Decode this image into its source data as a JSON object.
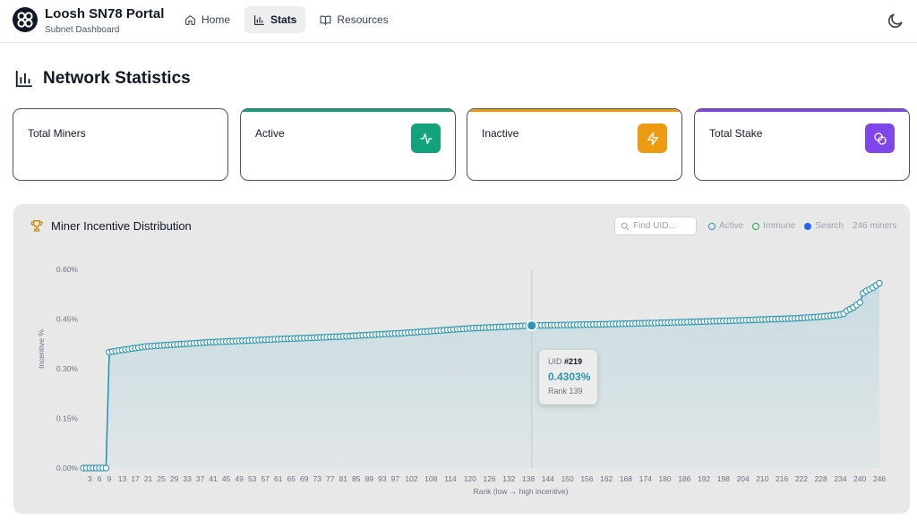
{
  "app": {
    "title": "Loosh SN78 Portal",
    "subtitle": "Subnet Dashboard"
  },
  "nav": {
    "items": [
      {
        "label": "Home",
        "icon": "home-icon",
        "active": false
      },
      {
        "label": "Stats",
        "icon": "bar-chart-icon",
        "active": true
      },
      {
        "label": "Resources",
        "icon": "book-icon",
        "active": false
      }
    ]
  },
  "page": {
    "title": "Network Statistics"
  },
  "stats": {
    "total_miners": {
      "label": "Total Miners",
      "value": "",
      "icon": "",
      "accent": ""
    },
    "active": {
      "label": "Active",
      "value": "",
      "icon": "activity-icon",
      "accent": "#12a37a"
    },
    "inactive": {
      "label": "Inactive",
      "value": "",
      "icon": "zap-icon",
      "accent": "#ee9a12"
    },
    "total_stake": {
      "label": "Total Stake",
      "value": "",
      "icon": "coins-icon",
      "accent": "#8146ea"
    }
  },
  "chart": {
    "title": "Miner Incentive Distribution",
    "search_placeholder": "Find UID...",
    "legend": [
      {
        "label": "Active",
        "color": "#2b97b0",
        "style": "ring"
      },
      {
        "label": "Immune",
        "color": "#22a35e",
        "style": "ring"
      },
      {
        "label": "Search",
        "color": "#2563eb",
        "style": "filled"
      }
    ],
    "count_label": "246 miners",
    "tooltip": {
      "uid_label": "UID",
      "uid": "#219",
      "value": "0.4303%",
      "rank": "Rank 139"
    }
  },
  "chart_data": {
    "type": "line",
    "title": "Miner Incentive Distribution",
    "xlabel": "Rank (low → high incentive)",
    "ylabel": "Incentive %",
    "x_tick_labels": [
      "3",
      "6",
      "9",
      "13",
      "17",
      "21",
      "25",
      "29",
      "33",
      "37",
      "41",
      "45",
      "49",
      "53",
      "57",
      "61",
      "65",
      "69",
      "73",
      "77",
      "81",
      "85",
      "89",
      "93",
      "97",
      "102",
      "108",
      "114",
      "120",
      "126",
      "132",
      "138",
      "144",
      "150",
      "156",
      "162",
      "168",
      "174",
      "180",
      "186",
      "192",
      "198",
      "204",
      "210",
      "216",
      "222",
      "228",
      "234",
      "240",
      "246"
    ],
    "y_tick_labels": [
      "0.00%",
      "0.15%",
      "0.30%",
      "0.45%",
      "0.60%"
    ],
    "xlim": [
      1,
      246
    ],
    "ylim": [
      0,
      0.6
    ],
    "grid": false,
    "legend_position": "top-right",
    "marker_color": "#2b97b0",
    "highlight": {
      "rank": 139,
      "uid": 219,
      "value": 0.4303
    },
    "profile": {
      "zero_count": 8,
      "ranks": [
        9,
        12,
        20,
        40,
        60,
        80,
        100,
        120,
        139,
        160,
        180,
        200,
        220,
        228,
        233,
        235,
        236,
        238,
        240,
        241,
        242,
        244,
        246
      ],
      "values": [
        0.35,
        0.355,
        0.367,
        0.38,
        0.389,
        0.397,
        0.408,
        0.422,
        0.4303,
        0.434,
        0.439,
        0.445,
        0.452,
        0.457,
        0.462,
        0.466,
        0.475,
        0.485,
        0.5,
        0.528,
        0.535,
        0.545,
        0.558
      ]
    }
  }
}
